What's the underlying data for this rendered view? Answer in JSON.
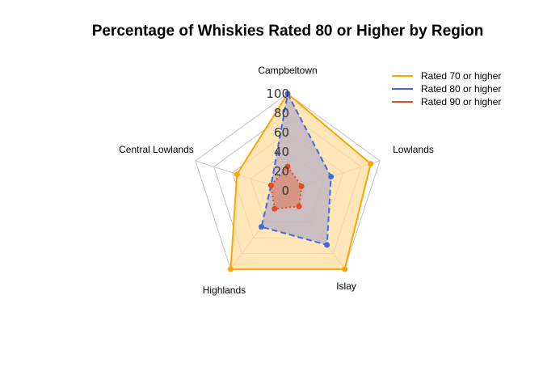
{
  "chart_data": {
    "type": "radar",
    "title": "Percentage of Whiskies Rated 80 or Higher by Region",
    "categories": [
      "Campbeltown",
      "Lowlands",
      "Islay",
      "Highlands",
      "Central Lowlands"
    ],
    "rlim": [
      0,
      100
    ],
    "ticks": [
      "0",
      "20",
      "40",
      "60",
      "80",
      "100"
    ],
    "series": [
      {
        "name": "Rated 70 or higher",
        "values": [
          100,
          90,
          100,
          100,
          55
        ],
        "color": "#FFA500",
        "fill": "#FFDDA0",
        "linestyle": "solid"
      },
      {
        "name": "Rated 80 or higher",
        "values": [
          100,
          47,
          69,
          46,
          18
        ],
        "color": "#4169E1",
        "fill": "#B8B0C4",
        "linestyle": "dashed"
      },
      {
        "name": "Rated 90 or higher",
        "values": [
          25,
          15,
          20,
          23,
          18
        ],
        "color": "#E34A1F",
        "fill": "#D98870",
        "linestyle": "dotted"
      }
    ],
    "legend_position": "top-right",
    "grid": true
  }
}
